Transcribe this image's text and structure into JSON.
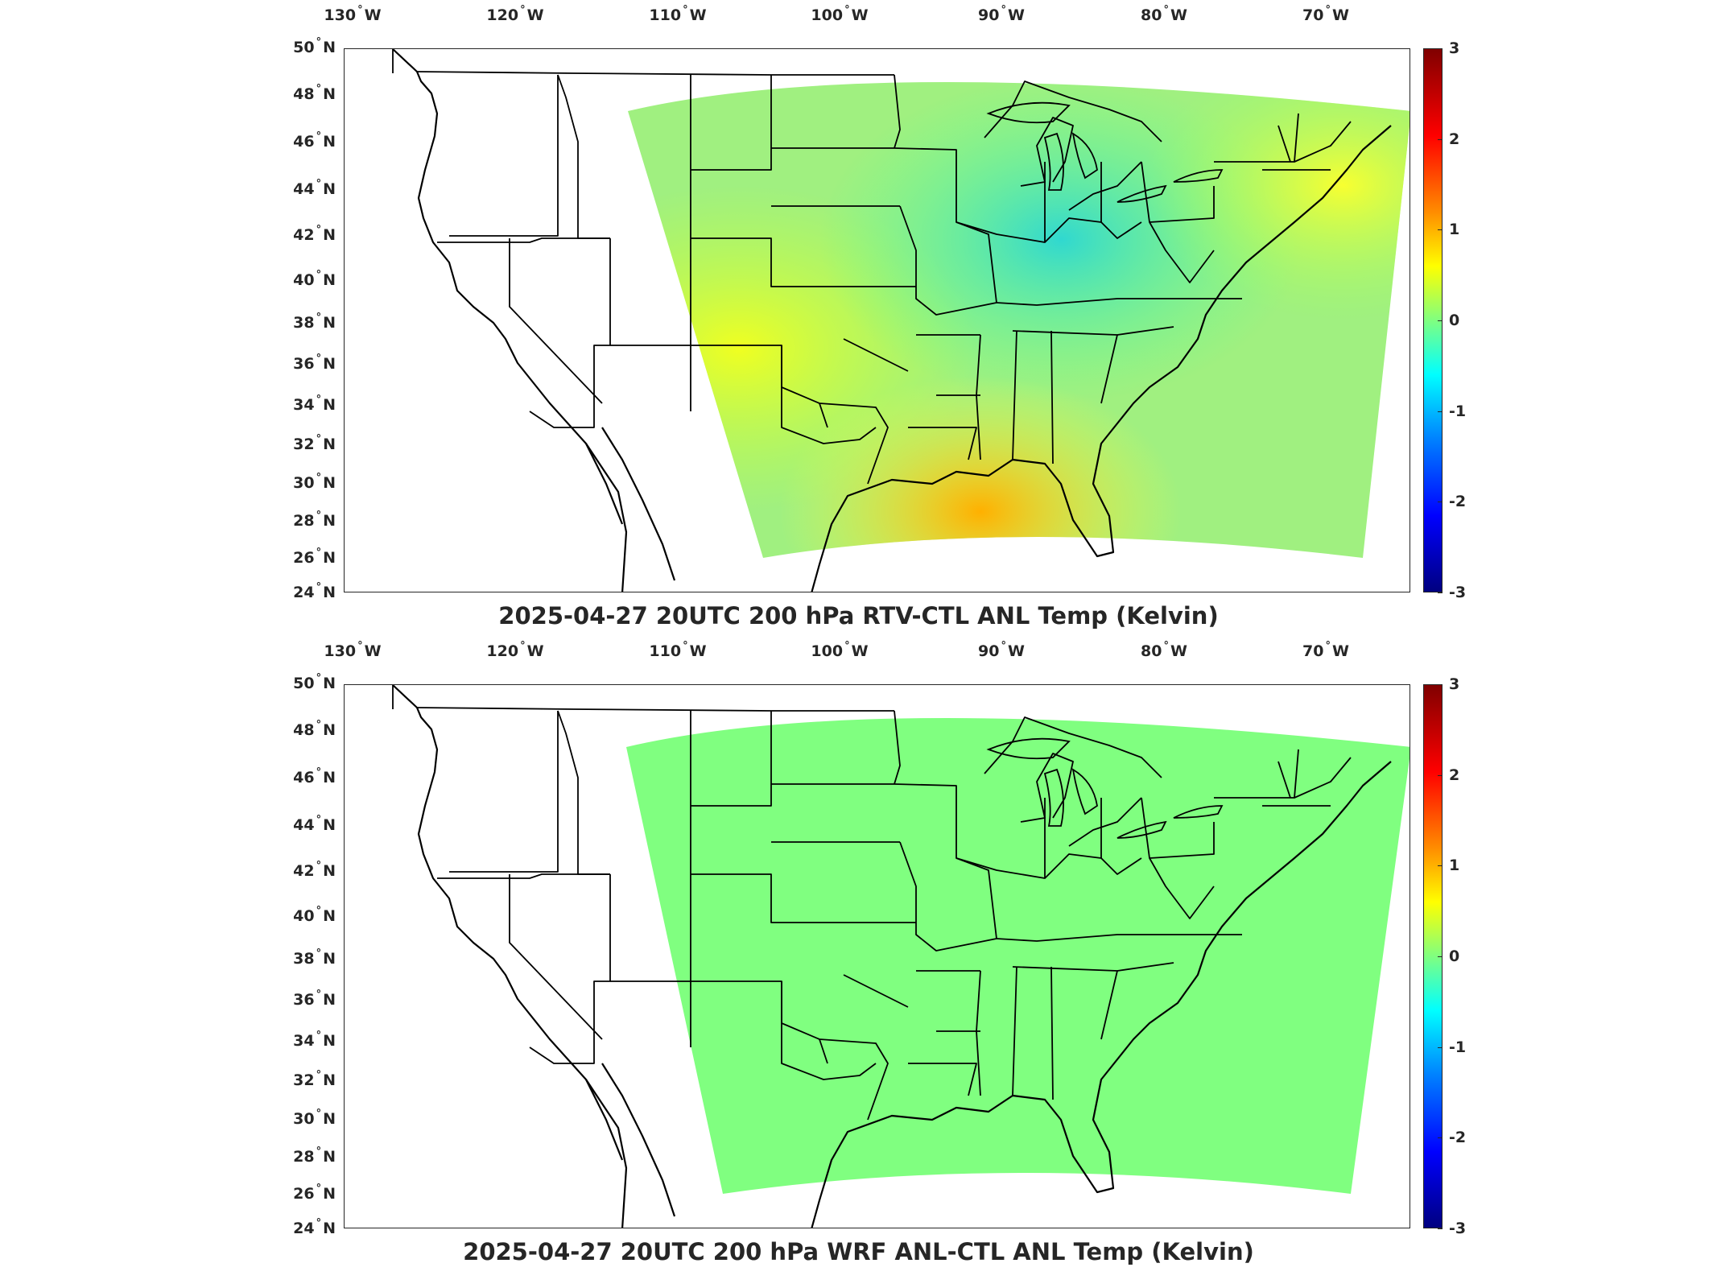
{
  "panels": [
    {
      "title": "2025-04-27 20UTC 200 hPa RTV-CTL ANL Temp (Kelvin)",
      "field": "varied",
      "lon_ticks": [
        "130",
        "120",
        "110",
        "100",
        "90",
        "80",
        "70"
      ],
      "lon_suffix": "W",
      "lat_ticks": [
        "50",
        "48",
        "46",
        "44",
        "42",
        "40",
        "38",
        "36",
        "34",
        "32",
        "30",
        "28",
        "26",
        "24"
      ],
      "lat_suffix": "N",
      "colorbar": {
        "ticks": [
          "3",
          "2",
          "1",
          "0",
          "-1",
          "-2",
          "-3"
        ],
        "range": [
          -3,
          3
        ],
        "colormap": "jet"
      }
    },
    {
      "title": "2025-04-27 20UTC 200 hPa WRF ANL-CTL ANL Temp (Kelvin)",
      "field": "uniform-zero",
      "lon_ticks": [
        "130",
        "120",
        "110",
        "100",
        "90",
        "80",
        "70"
      ],
      "lon_suffix": "W",
      "lat_ticks": [
        "50",
        "48",
        "46",
        "44",
        "42",
        "40",
        "38",
        "36",
        "34",
        "32",
        "30",
        "28",
        "26",
        "24"
      ],
      "lat_suffix": "N",
      "colorbar": {
        "ticks": [
          "3",
          "2",
          "1",
          "0",
          "-1",
          "-2",
          "-3"
        ],
        "range": [
          -3,
          3
        ],
        "colormap": "jet"
      }
    }
  ],
  "degree_symbol": "°",
  "colors": {
    "zero": "#80ff80",
    "warm": "#ffff30",
    "cool": "#40e0c0",
    "hot": "#ffb000",
    "border": "#000000"
  }
}
